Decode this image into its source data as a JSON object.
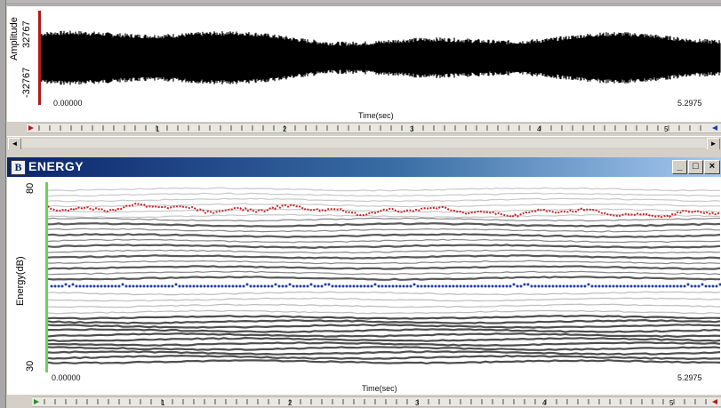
{
  "waveform": {
    "ylabel": "Amplitude",
    "ymax": "32767",
    "ymin": "-32767",
    "time_start": "0.00000",
    "time_end": "5.2975",
    "xlabel": "Time(sec)",
    "ruler_marks": [
      "1",
      "2",
      "3",
      "4",
      "5"
    ]
  },
  "energy_window": {
    "badge": "B",
    "title": "ENERGY",
    "ylabel": "Energy(dB)",
    "ymax": "80",
    "ymin": "30",
    "time_start": "0.00000",
    "time_end": "5.2975",
    "xlabel": "Time(sec)",
    "ruler_marks": [
      "1",
      "2",
      "3",
      "4",
      "5"
    ],
    "minimize_glyph": "_",
    "maximize_glyph": "□",
    "close_glyph": "×"
  },
  "scrollbar": {
    "left_arrow": "◄",
    "right_arrow": "►"
  },
  "colors": {
    "energy_curve": "#c62828",
    "pitch_curve": "#1f3fa8",
    "marker_red": "#b11a1a",
    "marker_green": "#6fcf5a",
    "titlebar_start": "#0a246a",
    "titlebar_end": "#a6caf0"
  }
}
